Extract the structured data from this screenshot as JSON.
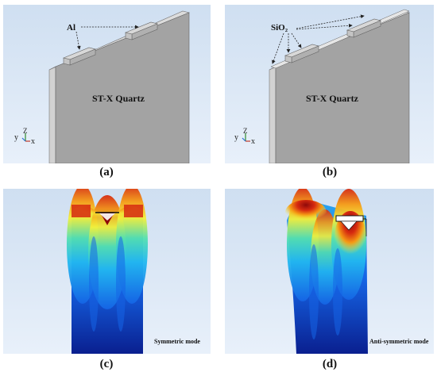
{
  "panels": {
    "a": {
      "sub_label": "(a)",
      "substrate_label": "ST-X Quartz",
      "electrode_label": "Al",
      "axis": {
        "y": "y",
        "z": "Z",
        "x": "x"
      }
    },
    "b": {
      "sub_label": "(b)",
      "substrate_label": "ST-X Quartz",
      "layer_label": "SiO₂",
      "axis": {
        "y": "y",
        "z": "Z",
        "x": "x"
      }
    },
    "c": {
      "sub_label": "(c)",
      "mode_label": "Symmetric mode"
    },
    "d": {
      "sub_label": "(d)",
      "mode_label": "Anti-symmetric mode"
    }
  },
  "colors": {
    "panel_background": "#dce8f5",
    "substrate_face": "#a3a3a3",
    "substrate_edge": "#c8c8c8",
    "electrode": "#bdbdbd",
    "colormap": [
      "#0a1f8f",
      "#1565e6",
      "#22b8f0",
      "#53e0b0",
      "#f3f03a",
      "#f59a14",
      "#d62a10",
      "#8f0a0a"
    ]
  },
  "icons": [
    "axis-triad-icon",
    "annotation-arrow-icon"
  ]
}
